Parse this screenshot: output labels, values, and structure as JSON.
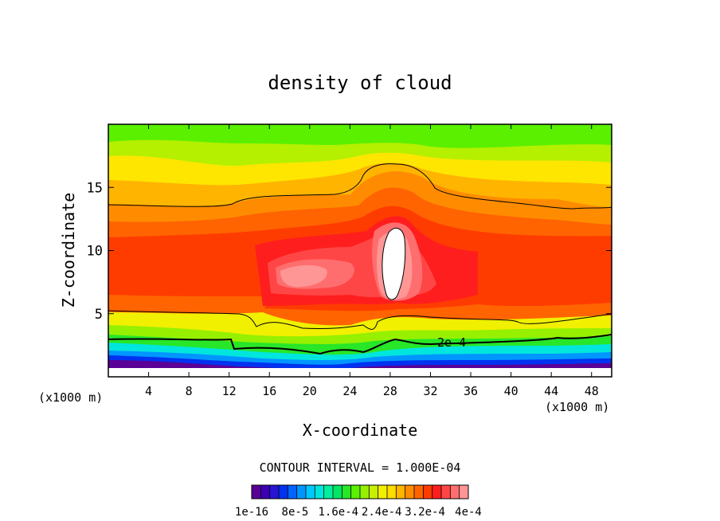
{
  "chart_data": {
    "type": "heatmap",
    "title": "density of cloud",
    "xlabel": "X-coordinate",
    "ylabel": "Z-coordinate",
    "x_unit": "(x1000 m)",
    "z_unit": "(x1000 m)",
    "xlim": [
      0,
      50
    ],
    "ylim": [
      0,
      20
    ],
    "x_ticks": [
      4,
      8,
      12,
      16,
      20,
      24,
      28,
      32,
      36,
      40,
      44,
      48
    ],
    "y_ticks": [
      5,
      10,
      15
    ],
    "contour_label": "2e-4",
    "contour_interval_text": "CONTOUR INTERVAL = 1.000E-04",
    "colorbar_labels": [
      "1e-16",
      "8e-5",
      "1.6e-4",
      "2.4e-4",
      "3.2e-4",
      "4e-4"
    ],
    "colorbar_colors": [
      "#5a0096",
      "#3c00b4",
      "#2814d2",
      "#0032f0",
      "#0064ff",
      "#0096ff",
      "#00c8ff",
      "#00e6dc",
      "#00f0a0",
      "#00e664",
      "#28e628",
      "#5af000",
      "#96f000",
      "#c8f000",
      "#f0f000",
      "#ffdc00",
      "#ffb400",
      "#ff8c00",
      "#ff6400",
      "#ff3c00",
      "#ff1e1e",
      "#ff4646",
      "#ff6e6e",
      "#ff9696"
    ],
    "max_region_color": "#ffffff"
  }
}
